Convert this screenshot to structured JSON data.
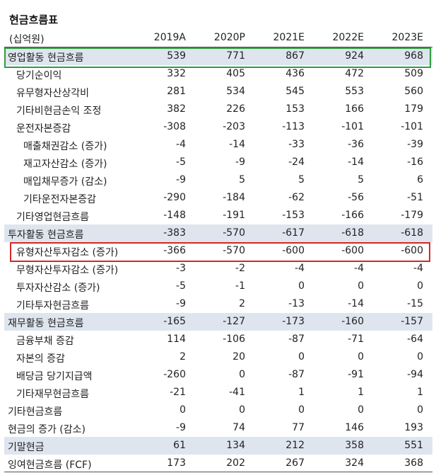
{
  "table": {
    "title": "현금흐름표",
    "unit": "(십억원)",
    "columns": [
      "2019A",
      "2020P",
      "2021E",
      "2022E",
      "2023E"
    ],
    "rows": [
      {
        "label": "영업활동 현금흐름",
        "indent": 0,
        "shaded": true,
        "highlight": "green",
        "values": [
          "539",
          "771",
          "867",
          "924",
          "968"
        ]
      },
      {
        "label": "당기순이익",
        "indent": 1,
        "shaded": false,
        "values": [
          "332",
          "405",
          "436",
          "472",
          "509"
        ]
      },
      {
        "label": "유무형자산상각비",
        "indent": 1,
        "shaded": false,
        "values": [
          "281",
          "534",
          "545",
          "553",
          "560"
        ]
      },
      {
        "label": "기타비현금손익 조정",
        "indent": 1,
        "shaded": false,
        "values": [
          "382",
          "226",
          "153",
          "166",
          "179"
        ]
      },
      {
        "label": "운전자본증감",
        "indent": 1,
        "shaded": false,
        "values": [
          "-308",
          "-203",
          "-113",
          "-101",
          "-101"
        ]
      },
      {
        "label": "매출채권감소 (증가)",
        "indent": 2,
        "shaded": false,
        "values": [
          "-4",
          "-14",
          "-33",
          "-36",
          "-39"
        ]
      },
      {
        "label": "재고자산감소 (증가)",
        "indent": 2,
        "shaded": false,
        "values": [
          "-5",
          "-9",
          "-24",
          "-14",
          "-16"
        ]
      },
      {
        "label": "매입채무증가 (감소)",
        "indent": 2,
        "shaded": false,
        "values": [
          "-9",
          "5",
          "5",
          "5",
          "6"
        ]
      },
      {
        "label": "기타운전자본증감",
        "indent": 2,
        "shaded": false,
        "values": [
          "-290",
          "-184",
          "-62",
          "-56",
          "-51"
        ]
      },
      {
        "label": "기타영업현금흐름",
        "indent": 1,
        "shaded": false,
        "values": [
          "-148",
          "-191",
          "-153",
          "-166",
          "-179"
        ]
      },
      {
        "label": "투자활동 현금흐름",
        "indent": 0,
        "shaded": true,
        "values": [
          "-383",
          "-570",
          "-617",
          "-618",
          "-618"
        ]
      },
      {
        "label": "유형자산투자감소 (증가)",
        "indent": 1,
        "shaded": false,
        "highlight": "red",
        "values": [
          "-366",
          "-570",
          "-600",
          "-600",
          "-600"
        ]
      },
      {
        "label": "무형자산투자감소 (증가)",
        "indent": 1,
        "shaded": false,
        "values": [
          "-3",
          "-2",
          "-4",
          "-4",
          "-4"
        ]
      },
      {
        "label": "투자자산감소 (증가)",
        "indent": 1,
        "shaded": false,
        "values": [
          "-5",
          "-1",
          "0",
          "0",
          "0"
        ]
      },
      {
        "label": "기타투자현금흐름",
        "indent": 1,
        "shaded": false,
        "values": [
          "-9",
          "2",
          "-13",
          "-14",
          "-15"
        ]
      },
      {
        "label": "재무활동 현금흐름",
        "indent": 0,
        "shaded": true,
        "values": [
          "-165",
          "-127",
          "-173",
          "-160",
          "-157"
        ]
      },
      {
        "label": "금융부채 증감",
        "indent": 1,
        "shaded": false,
        "values": [
          "114",
          "-106",
          "-87",
          "-71",
          "-64"
        ]
      },
      {
        "label": "자본의 증감",
        "indent": 1,
        "shaded": false,
        "values": [
          "2",
          "20",
          "0",
          "0",
          "0"
        ]
      },
      {
        "label": "배당금 당기지급액",
        "indent": 1,
        "shaded": false,
        "values": [
          "-260",
          "0",
          "-87",
          "-91",
          "-94"
        ]
      },
      {
        "label": "기타재무현금흐름",
        "indent": 1,
        "shaded": false,
        "values": [
          "-21",
          "-41",
          "1",
          "1",
          "1"
        ]
      },
      {
        "label": "기타현금흐름",
        "indent": 0,
        "shaded": false,
        "values": [
          "0",
          "0",
          "0",
          "0",
          "0"
        ]
      },
      {
        "label": "현금의 증가 (감소)",
        "indent": 0,
        "shaded": false,
        "values": [
          "-9",
          "74",
          "77",
          "146",
          "193"
        ]
      },
      {
        "label": "기말현금",
        "indent": 0,
        "shaded": true,
        "values": [
          "61",
          "134",
          "212",
          "358",
          "551"
        ]
      },
      {
        "label": "잉여현금흐름 (FCF)",
        "indent": 0,
        "shaded": false,
        "values": [
          "173",
          "202",
          "267",
          "324",
          "368"
        ]
      }
    ]
  },
  "colors": {
    "shade": "#dfe5ef",
    "green_box": "#2e9e3e",
    "red_box": "#d42727",
    "rule": "#555555"
  }
}
